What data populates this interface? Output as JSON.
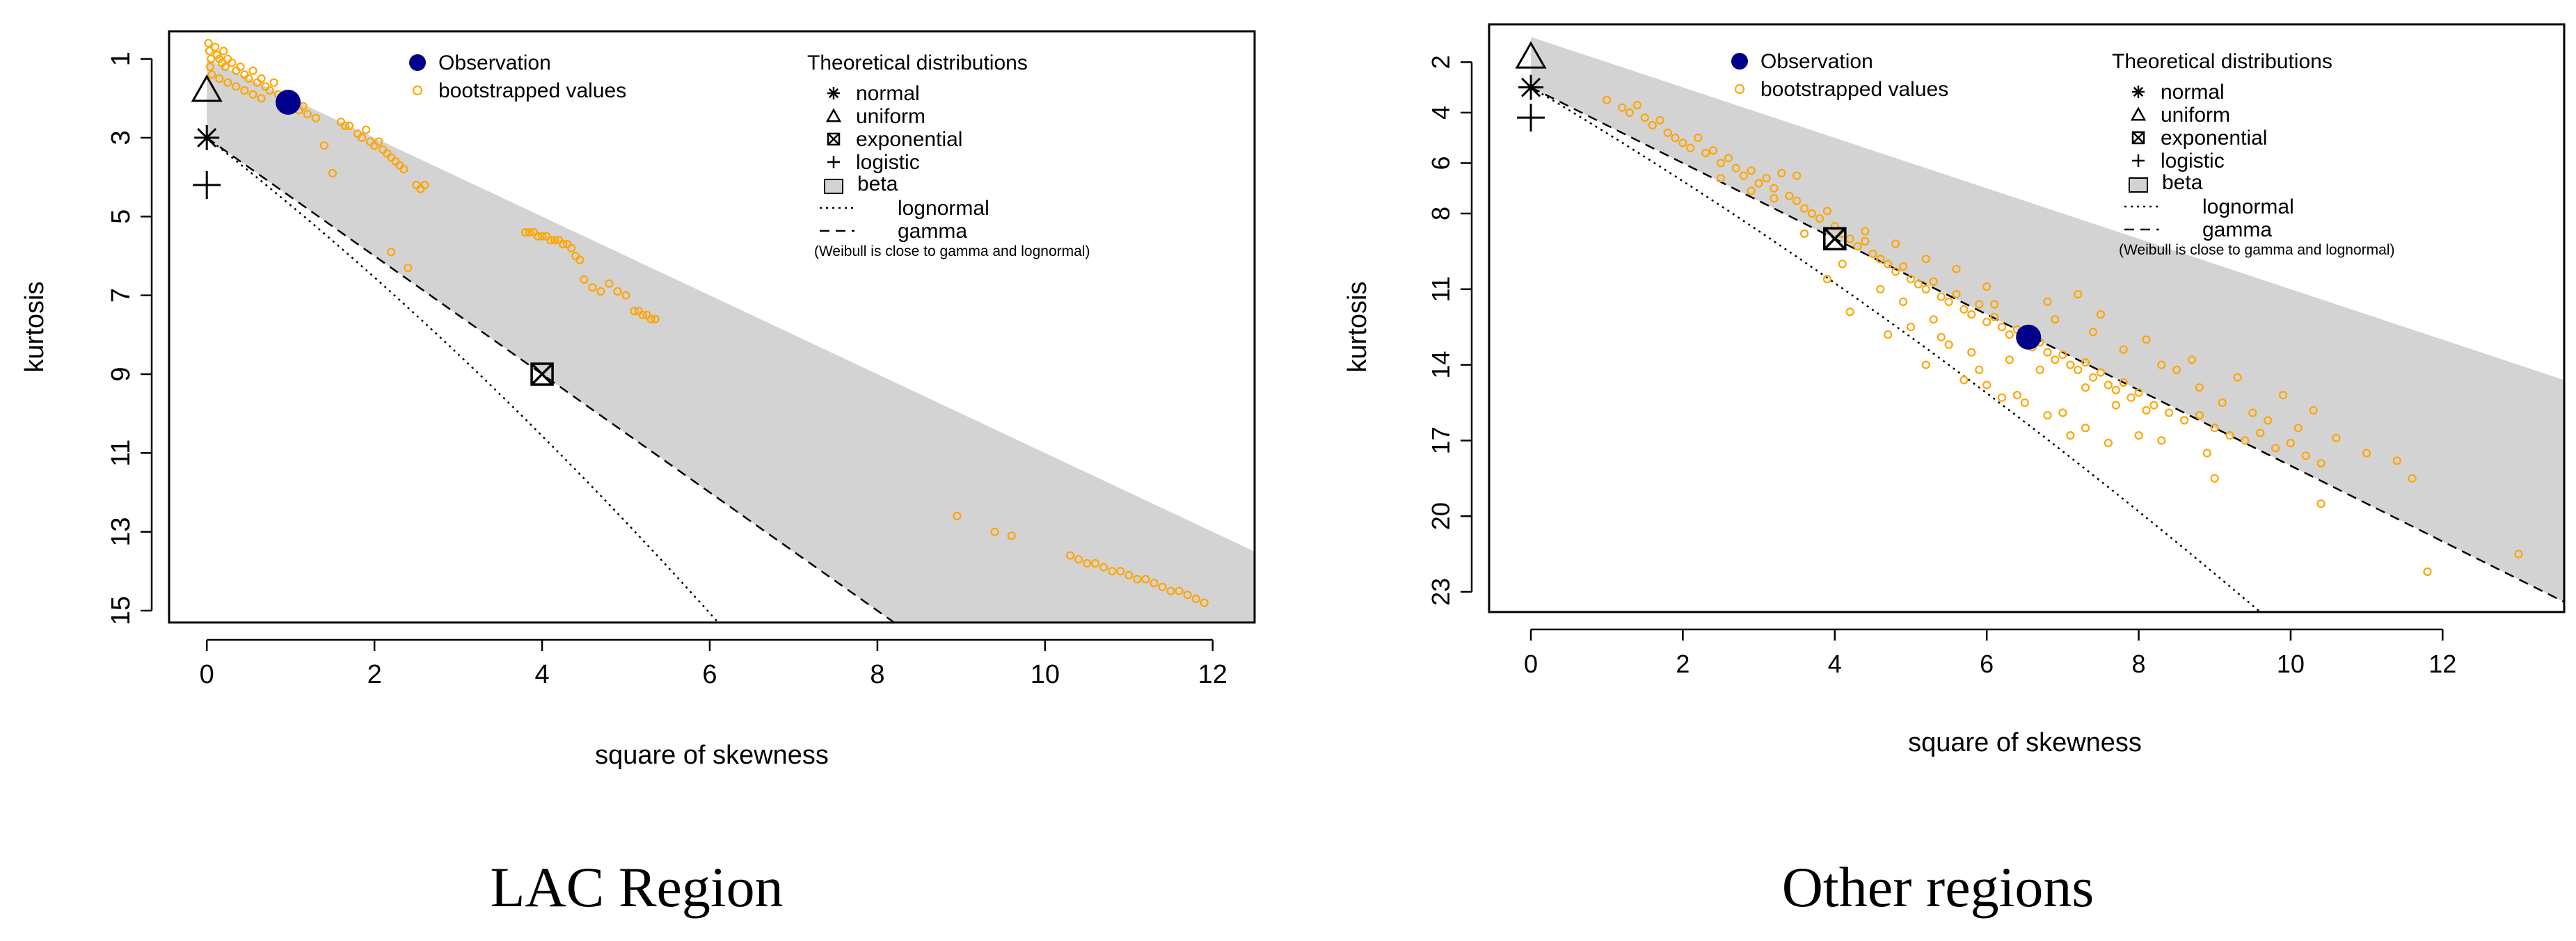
{
  "chart_data": [
    {
      "type": "scatter",
      "title": "",
      "caption": "LAC Region",
      "xlabel": "square of skewness",
      "ylabel": "kurtosis",
      "xlim": [
        -0.45,
        12.5
      ],
      "ylim": [
        15.3,
        0.3
      ],
      "x_ticks": [
        "0",
        "2",
        "4",
        "6",
        "8",
        "10",
        "12"
      ],
      "x_tick_values": [
        0,
        2,
        4,
        6,
        8,
        10,
        12
      ],
      "y_ticks": [
        "1",
        "3",
        "5",
        "7",
        "9",
        "11",
        "13",
        "15"
      ],
      "y_tick_values": [
        1,
        3,
        5,
        7,
        9,
        11,
        13,
        15
      ],
      "beta_region_top": [
        [
          0,
          1
        ],
        [
          12.5,
          13.5
        ]
      ],
      "beta_region_bottom": [
        [
          0,
          3
        ],
        [
          12.5,
          21.75
        ]
      ],
      "observation": {
        "x": 0.97,
        "y": 2.1
      },
      "theoretical": {
        "normal": {
          "x": 0,
          "y": 3
        },
        "uniform": {
          "x": 0,
          "y": 1.8
        },
        "exponential": {
          "x": 4,
          "y": 9
        },
        "logistic": {
          "x": 0,
          "y": 4.2
        }
      },
      "lognormal_curve_x_end": 6.1,
      "gamma_line": [
        [
          0,
          3
        ],
        [
          8.4,
          15.6
        ]
      ],
      "bootstrapped_values": [
        [
          0.02,
          0.6
        ],
        [
          0.03,
          0.8
        ],
        [
          0.05,
          1.0
        ],
        [
          0.04,
          1.2
        ],
        [
          0.06,
          1.4
        ],
        [
          0.1,
          0.7
        ],
        [
          0.12,
          0.9
        ],
        [
          0.15,
          1.0
        ],
        [
          0.18,
          1.1
        ],
        [
          0.2,
          0.8
        ],
        [
          0.22,
          1.2
        ],
        [
          0.25,
          1.0
        ],
        [
          0.3,
          1.1
        ],
        [
          0.35,
          1.3
        ],
        [
          0.4,
          1.2
        ],
        [
          0.45,
          1.4
        ],
        [
          0.5,
          1.5
        ],
        [
          0.55,
          1.3
        ],
        [
          0.6,
          1.6
        ],
        [
          0.65,
          1.5
        ],
        [
          0.7,
          1.7
        ],
        [
          0.75,
          1.8
        ],
        [
          0.8,
          1.6
        ],
        [
          0.85,
          1.9
        ],
        [
          0.9,
          2.0
        ],
        [
          1.05,
          2.1
        ],
        [
          1.1,
          2.3
        ],
        [
          1.15,
          2.2
        ],
        [
          1.2,
          2.4
        ],
        [
          1.3,
          2.5
        ],
        [
          0.15,
          1.5
        ],
        [
          0.25,
          1.6
        ],
        [
          0.35,
          1.7
        ],
        [
          0.45,
          1.8
        ],
        [
          0.55,
          1.9
        ],
        [
          0.65,
          2.0
        ],
        [
          1.4,
          3.2
        ],
        [
          1.5,
          3.9
        ],
        [
          1.6,
          2.6
        ],
        [
          1.65,
          2.7
        ],
        [
          1.7,
          2.7
        ],
        [
          1.8,
          2.9
        ],
        [
          1.85,
          3.0
        ],
        [
          1.9,
          2.8
        ],
        [
          1.95,
          3.1
        ],
        [
          2.0,
          3.2
        ],
        [
          2.05,
          3.1
        ],
        [
          2.1,
          3.3
        ],
        [
          2.15,
          3.4
        ],
        [
          2.2,
          3.5
        ],
        [
          2.25,
          3.6
        ],
        [
          2.3,
          3.7
        ],
        [
          2.35,
          3.8
        ],
        [
          2.2,
          5.9
        ],
        [
          2.4,
          6.3
        ],
        [
          2.5,
          4.2
        ],
        [
          2.55,
          4.3
        ],
        [
          2.6,
          4.2
        ],
        [
          3.8,
          5.4
        ],
        [
          3.85,
          5.4
        ],
        [
          3.9,
          5.4
        ],
        [
          3.95,
          5.5
        ],
        [
          4.0,
          5.5
        ],
        [
          4.05,
          5.5
        ],
        [
          4.1,
          5.6
        ],
        [
          4.15,
          5.6
        ],
        [
          4.2,
          5.6
        ],
        [
          4.25,
          5.7
        ],
        [
          4.3,
          5.7
        ],
        [
          4.35,
          5.8
        ],
        [
          4.4,
          6.0
        ],
        [
          4.45,
          6.1
        ],
        [
          4.5,
          6.6
        ],
        [
          4.6,
          6.8
        ],
        [
          4.7,
          6.9
        ],
        [
          4.8,
          6.7
        ],
        [
          4.9,
          6.9
        ],
        [
          5.0,
          7.0
        ],
        [
          5.1,
          7.4
        ],
        [
          5.15,
          7.4
        ],
        [
          5.2,
          7.5
        ],
        [
          5.25,
          7.5
        ],
        [
          5.3,
          7.6
        ],
        [
          5.35,
          7.6
        ],
        [
          8.95,
          12.6
        ],
        [
          9.4,
          13.0
        ],
        [
          9.6,
          13.1
        ],
        [
          10.3,
          13.6
        ],
        [
          10.4,
          13.7
        ],
        [
          10.5,
          13.8
        ],
        [
          10.6,
          13.8
        ],
        [
          10.7,
          13.9
        ],
        [
          10.8,
          14.0
        ],
        [
          10.9,
          14.0
        ],
        [
          11.0,
          14.1
        ],
        [
          11.1,
          14.2
        ],
        [
          11.2,
          14.2
        ],
        [
          11.3,
          14.3
        ],
        [
          11.4,
          14.4
        ],
        [
          11.5,
          14.5
        ],
        [
          11.6,
          14.5
        ],
        [
          11.7,
          14.6
        ],
        [
          11.8,
          14.7
        ],
        [
          11.9,
          14.8
        ]
      ],
      "legend": {
        "observation": "Observation",
        "bootstrapped": "bootstrapped values",
        "theoretical_title": "Theoretical distributions",
        "normal": "normal",
        "uniform": "uniform",
        "exponential": "exponential",
        "logistic": "logistic",
        "beta": "beta",
        "lognormal": "lognormal",
        "gamma": "gamma",
        "note": "(Weibull is close to gamma and lognormal)"
      },
      "colors": {
        "observation": "#00008B",
        "bootstrapped": "#FFA500",
        "beta": "#D3D3D3"
      }
    },
    {
      "type": "scatter",
      "title": "",
      "caption": "Other regions",
      "xlabel": "square of skewness",
      "ylabel": "kurtosis",
      "xlim": [
        -0.55,
        13.6
      ],
      "ylim": [
        23.8,
        0.5
      ],
      "x_ticks": [
        "0",
        "2",
        "4",
        "6",
        "8",
        "10",
        "12"
      ],
      "x_tick_values": [
        0,
        2,
        4,
        6,
        8,
        10,
        12
      ],
      "y_ticks": [
        "2",
        "4",
        "6",
        "8",
        "11",
        "14",
        "17",
        "20",
        "23"
      ],
      "y_tick_values": [
        2,
        4,
        6,
        8,
        11,
        14,
        17,
        20,
        23
      ],
      "beta_region_top": [
        [
          0,
          1
        ],
        [
          13.6,
          14.6
        ]
      ],
      "beta_region_bottom": [
        [
          0,
          3
        ],
        [
          13.6,
          23.4
        ]
      ],
      "observation": {
        "x": 6.55,
        "y": 12.9
      },
      "theoretical": {
        "normal": {
          "x": 0,
          "y": 3
        },
        "uniform": {
          "x": 0,
          "y": 1.8
        },
        "exponential": {
          "x": 4,
          "y": 9
        },
        "logistic": {
          "x": 0,
          "y": 4.2
        }
      },
      "lognormal_curve_x_end": 9.6,
      "gamma_line": [
        [
          0,
          3
        ],
        [
          13.6,
          23.4
        ]
      ],
      "bootstrapped_values": [
        [
          1.0,
          3.5
        ],
        [
          1.2,
          3.8
        ],
        [
          1.3,
          4.0
        ],
        [
          1.4,
          3.7
        ],
        [
          1.5,
          4.2
        ],
        [
          1.6,
          4.5
        ],
        [
          1.7,
          4.3
        ],
        [
          1.8,
          4.8
        ],
        [
          1.9,
          5.0
        ],
        [
          2.0,
          5.2
        ],
        [
          2.1,
          5.4
        ],
        [
          2.2,
          5.0
        ],
        [
          2.3,
          5.6
        ],
        [
          2.4,
          5.5
        ],
        [
          2.5,
          6.0
        ],
        [
          2.6,
          5.8
        ],
        [
          2.7,
          6.2
        ],
        [
          2.8,
          6.5
        ],
        [
          2.9,
          6.3
        ],
        [
          3.0,
          6.8
        ],
        [
          3.1,
          6.6
        ],
        [
          3.2,
          7.0
        ],
        [
          3.3,
          6.4
        ],
        [
          3.4,
          7.3
        ],
        [
          3.5,
          7.5
        ],
        [
          3.6,
          7.8
        ],
        [
          3.7,
          8.0
        ],
        [
          3.8,
          8.2
        ],
        [
          3.9,
          7.9
        ],
        [
          4.0,
          8.5
        ],
        [
          4.1,
          8.8
        ],
        [
          4.2,
          9.0
        ],
        [
          4.3,
          9.3
        ],
        [
          4.4,
          9.1
        ],
        [
          4.5,
          9.6
        ],
        [
          4.6,
          9.8
        ],
        [
          4.7,
          10.0
        ],
        [
          4.8,
          10.3
        ],
        [
          4.9,
          10.1
        ],
        [
          5.0,
          10.6
        ],
        [
          5.1,
          10.8
        ],
        [
          5.2,
          11.0
        ],
        [
          5.3,
          10.7
        ],
        [
          5.4,
          11.3
        ],
        [
          5.5,
          11.5
        ],
        [
          5.6,
          11.2
        ],
        [
          5.7,
          11.8
        ],
        [
          5.8,
          12.0
        ],
        [
          5.9,
          11.6
        ],
        [
          6.0,
          12.3
        ],
        [
          6.1,
          12.1
        ],
        [
          6.2,
          12.5
        ],
        [
          6.3,
          12.8
        ],
        [
          6.4,
          12.6
        ],
        [
          6.5,
          13.0
        ],
        [
          6.6,
          13.3
        ],
        [
          6.7,
          13.1
        ],
        [
          6.8,
          13.5
        ],
        [
          6.9,
          13.8
        ],
        [
          7.0,
          13.6
        ],
        [
          7.1,
          14.0
        ],
        [
          7.2,
          14.2
        ],
        [
          7.3,
          13.9
        ],
        [
          7.4,
          14.5
        ],
        [
          7.5,
          14.3
        ],
        [
          7.6,
          14.8
        ],
        [
          7.7,
          15.0
        ],
        [
          7.8,
          14.7
        ],
        [
          7.9,
          15.3
        ],
        [
          8.0,
          15.1
        ],
        [
          8.2,
          15.6
        ],
        [
          8.4,
          15.9
        ],
        [
          8.6,
          16.2
        ],
        [
          8.8,
          16.0
        ],
        [
          9.0,
          16.5
        ],
        [
          9.2,
          16.8
        ],
        [
          9.4,
          17.0
        ],
        [
          9.6,
          16.7
        ],
        [
          9.8,
          17.3
        ],
        [
          10.0,
          17.1
        ],
        [
          10.2,
          17.6
        ],
        [
          10.4,
          17.9
        ],
        [
          11.4,
          17.8
        ],
        [
          11.6,
          18.5
        ],
        [
          13.0,
          21.5
        ],
        [
          11.8,
          22.2
        ],
        [
          10.4,
          19.5
        ],
        [
          9.0,
          18.5
        ],
        [
          8.3,
          17.0
        ],
        [
          7.3,
          16.5
        ],
        [
          6.8,
          16.0
        ],
        [
          6.2,
          15.3
        ],
        [
          5.7,
          14.6
        ],
        [
          5.2,
          14.0
        ],
        [
          4.7,
          12.8
        ],
        [
          4.2,
          11.9
        ],
        [
          3.9,
          10.6
        ],
        [
          6.0,
          14.8
        ],
        [
          6.5,
          15.5
        ],
        [
          7.0,
          15.9
        ],
        [
          5.0,
          12.5
        ],
        [
          5.5,
          13.2
        ],
        [
          6.3,
          13.8
        ],
        [
          7.5,
          12.0
        ],
        [
          8.1,
          13.0
        ],
        [
          8.7,
          13.8
        ],
        [
          9.3,
          14.5
        ],
        [
          9.9,
          15.2
        ],
        [
          10.3,
          15.8
        ],
        [
          7.2,
          11.2
        ],
        [
          6.8,
          11.5
        ],
        [
          6.0,
          10.9
        ],
        [
          5.6,
          10.2
        ],
        [
          5.2,
          9.8
        ],
        [
          4.8,
          9.2
        ],
        [
          4.4,
          8.7
        ],
        [
          3.5,
          6.5
        ],
        [
          3.2,
          7.4
        ],
        [
          2.9,
          7.1
        ],
        [
          2.5,
          6.6
        ],
        [
          8.5,
          14.2
        ],
        [
          9.1,
          15.5
        ],
        [
          9.5,
          15.9
        ],
        [
          10.1,
          16.5
        ],
        [
          8.9,
          17.5
        ],
        [
          8.0,
          16.8
        ],
        [
          7.6,
          17.1
        ],
        [
          7.1,
          16.8
        ],
        [
          6.4,
          15.2
        ],
        [
          5.9,
          14.2
        ],
        [
          5.4,
          12.9
        ],
        [
          4.9,
          11.5
        ],
        [
          4.6,
          11.0
        ],
        [
          4.1,
          10.0
        ],
        [
          3.6,
          8.8
        ],
        [
          6.9,
          12.2
        ],
        [
          7.4,
          12.7
        ],
        [
          7.8,
          13.4
        ],
        [
          8.3,
          14.0
        ],
        [
          8.8,
          14.9
        ],
        [
          9.7,
          16.2
        ],
        [
          10.6,
          16.9
        ],
        [
          11.0,
          17.5
        ],
        [
          6.1,
          11.6
        ],
        [
          6.7,
          14.2
        ],
        [
          7.3,
          14.9
        ],
        [
          7.7,
          15.6
        ],
        [
          8.1,
          15.8
        ],
        [
          5.8,
          13.5
        ],
        [
          5.3,
          12.2
        ]
      ],
      "legend": {
        "observation": "Observation",
        "bootstrapped": "bootstrapped values",
        "theoretical_title": "Theoretical distributions",
        "normal": "normal",
        "uniform": "uniform",
        "exponential": "exponential",
        "logistic": "logistic",
        "beta": "beta",
        "lognormal": "lognormal",
        "gamma": "gamma",
        "note": "(Weibull is close to gamma and lognormal)"
      },
      "colors": {
        "observation": "#00008B",
        "bootstrapped": "#FFA500",
        "beta": "#D3D3D3"
      }
    }
  ]
}
